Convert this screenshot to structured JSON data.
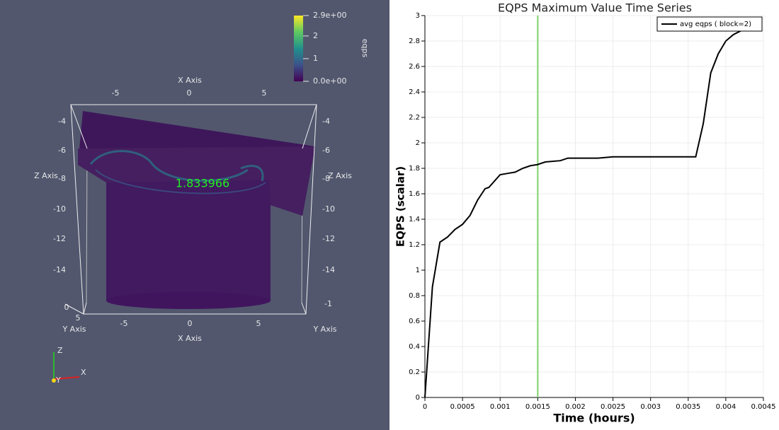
{
  "render_view": {
    "colorbar": {
      "title": "eqps",
      "range": [
        0,
        2.9
      ],
      "ticks": [
        {
          "value": 2.9,
          "label": "2.9e+00"
        },
        2,
        1,
        {
          "value": 0,
          "label": "0.0e+00"
        }
      ]
    },
    "annotation": "1.833966",
    "axes_grid": {
      "x_title": "X Axis",
      "x_ticks_top": [
        -5,
        0,
        5
      ],
      "x_ticks_bottom": [
        -5,
        0,
        5
      ],
      "z_title": "Z Axis",
      "z_ticks_left": [
        -4,
        -6,
        -8,
        -10,
        -12,
        -14
      ],
      "z_ticks_right": [
        -4,
        -6,
        -8,
        -10,
        -12,
        -14
      ],
      "y_title": "Y Axis",
      "y_ticks_left": [
        5,
        0
      ],
      "y_ticks_right": [
        -1
      ]
    },
    "orientation_axes": [
      "Z",
      "X",
      "Y"
    ]
  },
  "chart_data": {
    "type": "line",
    "title": "EQPS Maximum Value Time Series",
    "x_label": "Time (hours)",
    "y_label": "EQPS (scalar)",
    "x": [
      0,
      0.0001,
      0.0002,
      0.0003,
      0.0004,
      0.0005,
      0.0006,
      0.0007,
      0.0008,
      0.00085,
      0.001,
      0.0011,
      0.0012,
      0.0013,
      0.0014,
      0.0015,
      0.0016,
      0.0018,
      0.0019,
      0.0023,
      0.0025,
      0.0027,
      0.0034,
      0.0036,
      0.0037,
      0.0038,
      0.0039,
      0.004,
      0.0041,
      0.0042,
      0.0043
    ],
    "series": [
      {
        "name": "avg eqps ( block=2)",
        "color": "#000000",
        "values": [
          0,
          0.87,
          1.22,
          1.26,
          1.32,
          1.36,
          1.43,
          1.55,
          1.64,
          1.65,
          1.75,
          1.76,
          1.77,
          1.8,
          1.82,
          1.83,
          1.85,
          1.86,
          1.88,
          1.88,
          1.89,
          1.89,
          1.89,
          1.89,
          2.15,
          2.55,
          2.7,
          2.8,
          2.85,
          2.88,
          2.9
        ]
      }
    ],
    "time_marker": {
      "value": 0.0015,
      "color": "#7fd26b"
    },
    "xlim": [
      0,
      0.0045
    ],
    "xticks": [
      0,
      0.0005,
      0.001,
      0.0015,
      0.002,
      0.0025,
      0.003,
      0.0035,
      0.004,
      0.0045
    ],
    "ylim": [
      0,
      3
    ],
    "yticks": [
      0,
      0.2,
      0.4,
      0.6,
      0.8,
      1,
      1.2,
      1.4,
      1.6,
      1.8,
      2,
      2.2,
      2.4,
      2.6,
      2.8,
      3
    ],
    "grid": true,
    "legend": "top-right"
  }
}
